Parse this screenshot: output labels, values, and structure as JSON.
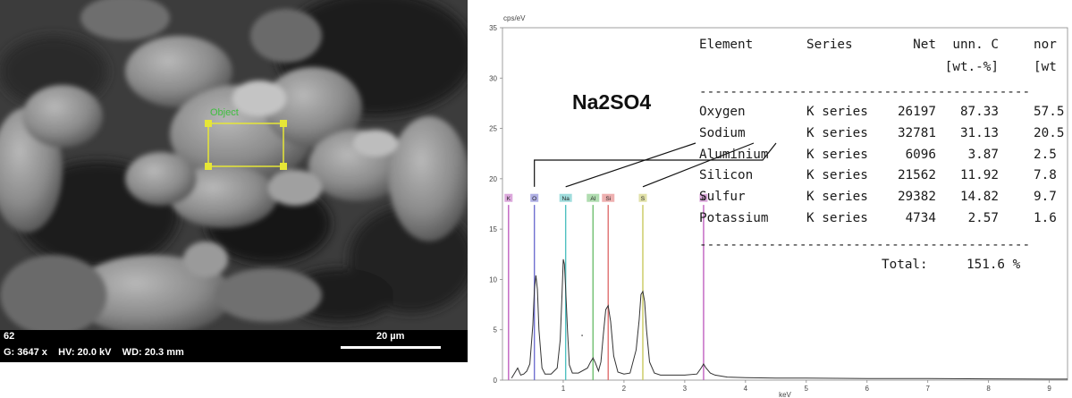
{
  "sem": {
    "roi_label": "Object",
    "scale_bar_label": "20 µm",
    "info_line_1": "62",
    "info_line_2": "G: 3647 x    HV: 20.0 kV    WD: 20.3 mm"
  },
  "annotation": {
    "compound": "Na2SO4"
  },
  "chart_data": {
    "type": "line",
    "title": "",
    "ylabel": "cps/eV",
    "xlabel": "keV",
    "xlim": [
      0,
      9.3
    ],
    "ylim": [
      0,
      35
    ],
    "x_ticks": [
      "1",
      "2",
      "3",
      "4",
      "5",
      "6",
      "7",
      "8",
      "9"
    ],
    "y_ticks": [
      "0",
      "5",
      "10",
      "15",
      "20",
      "25",
      "30",
      "35"
    ],
    "grid": false,
    "series": [
      {
        "x": [
          0.15,
          0.25,
          0.3,
          0.35,
          0.4,
          0.45,
          0.5,
          0.525,
          0.55,
          0.575,
          0.6,
          0.65,
          0.7,
          0.8,
          0.9,
          0.95,
          0.98,
          1.0,
          1.02,
          1.04,
          1.07,
          1.1,
          1.15,
          1.25,
          1.4,
          1.45,
          1.49,
          1.53,
          1.58,
          1.62,
          1.66,
          1.7,
          1.74,
          1.78,
          1.83,
          1.9,
          2.0,
          2.1,
          2.2,
          2.25,
          2.28,
          2.31,
          2.34,
          2.37,
          2.42,
          2.5,
          2.6,
          2.8,
          3.0,
          3.2,
          3.27,
          3.31,
          3.35,
          3.42,
          3.5,
          3.6,
          3.7,
          4.0,
          4.5,
          5.0,
          6.0,
          7.0,
          8.0,
          9.0,
          9.3
        ],
        "y": [
          0.2,
          1.2,
          0.5,
          0.6,
          0.9,
          1.6,
          5.5,
          9.0,
          10.4,
          9.0,
          5.0,
          1.2,
          0.6,
          0.6,
          1.2,
          4.0,
          8.5,
          12.0,
          11.5,
          9.0,
          5.0,
          1.5,
          0.7,
          0.7,
          1.2,
          1.8,
          2.2,
          1.7,
          0.9,
          1.8,
          4.5,
          7.0,
          7.4,
          5.8,
          2.4,
          0.8,
          0.6,
          0.7,
          3.0,
          6.0,
          8.5,
          8.8,
          7.8,
          5.0,
          1.8,
          0.7,
          0.5,
          0.5,
          0.5,
          0.6,
          1.2,
          1.6,
          1.2,
          0.7,
          0.5,
          0.4,
          0.3,
          0.25,
          0.2,
          0.2,
          0.15,
          0.15,
          0.12,
          0.1,
          0.1
        ]
      }
    ],
    "element_markers": [
      {
        "label": "K",
        "x": 0.1,
        "color": "#c060c0"
      },
      {
        "label": "O",
        "x": 0.525,
        "color": "#7070d0"
      },
      {
        "label": "Na",
        "x": 1.04,
        "color": "#50c0c0"
      },
      {
        "label": "Al",
        "x": 1.49,
        "color": "#70c070"
      },
      {
        "label": "Si",
        "x": 1.74,
        "color": "#e07070"
      },
      {
        "label": "S",
        "x": 2.31,
        "color": "#c8c860"
      },
      {
        "label": "K",
        "x": 3.31,
        "color": "#c060c0"
      }
    ]
  },
  "table": {
    "headers": [
      "Element",
      "Series",
      "Net",
      "unn. C",
      "nor"
    ],
    "units": [
      "",
      "",
      "",
      "[wt.-%]",
      "[wt"
    ],
    "rows": [
      [
        "Oxygen",
        "K series",
        "26197",
        "87.33",
        "57.5"
      ],
      [
        "Sodium",
        "K series",
        "32781",
        "31.13",
        "20.5"
      ],
      [
        "Aluminium",
        "K series",
        "6096",
        "3.87",
        "2.5"
      ],
      [
        "Silicon",
        "K series",
        "21562",
        "11.92",
        "7.8"
      ],
      [
        "Sulfur",
        "K series",
        "29382",
        "14.82",
        "9.7"
      ],
      [
        "Potassium",
        "K series",
        "4734",
        "2.57",
        "1.6"
      ]
    ],
    "total_label": "Total:",
    "total_value": "151.6 %"
  }
}
